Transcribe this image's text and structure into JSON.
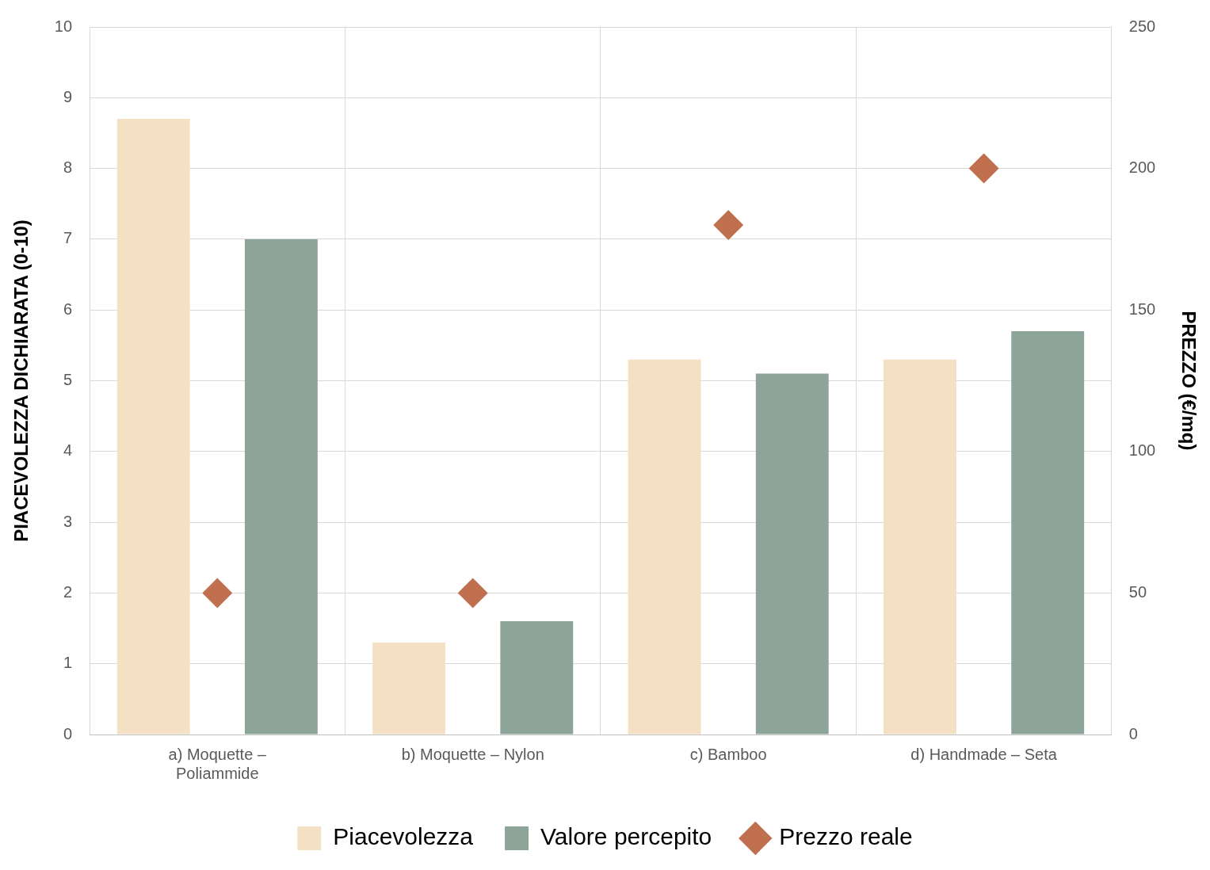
{
  "chart_data": {
    "type": "bar",
    "ylabel": "PIACEVOLEZZA DICHIARATA (0-10)",
    "y2label": "PREZZO (€/mq)",
    "categories": [
      "a) Moquette – Poliammide",
      "b) Moquette – Nylon",
      "c) Bamboo",
      "d) Handmade – Seta"
    ],
    "series": [
      {
        "name": "Piacevolezza",
        "color": "#f4e0c2",
        "values": [
          8.7,
          1.3,
          5.3,
          5.3
        ]
      },
      {
        "name": "Valore percepito",
        "color": "#8ca598",
        "values": [
          7.0,
          1.6,
          5.1,
          5.7
        ]
      },
      {
        "name": "Prezzo reale",
        "color": "#c0704f",
        "type": "scatter",
        "axis": "y2",
        "marker": "diamond",
        "values": [
          50,
          50,
          180,
          200
        ]
      }
    ],
    "ylim": [
      0,
      10
    ],
    "yticks": [
      0,
      1,
      2,
      3,
      4,
      5,
      6,
      7,
      8,
      9,
      10
    ],
    "y2lim": [
      0,
      250
    ],
    "y2ticks": [
      0,
      50,
      100,
      150,
      200,
      250
    ],
    "grid": true,
    "legend": "bottom"
  }
}
